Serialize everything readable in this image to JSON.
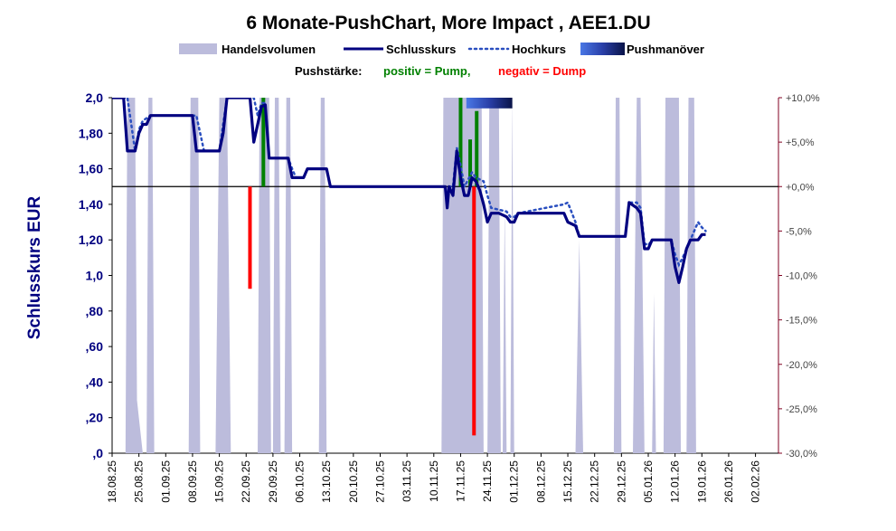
{
  "chart_data": {
    "type": "line",
    "title": "6 Monate-PushChart, More Impact , AEE1.DU",
    "legend": [
      {
        "name": "Handelsvolumen",
        "kind": "area",
        "color": "#bcbcdc"
      },
      {
        "name": "Schlusskurs",
        "kind": "line",
        "color": "#000080"
      },
      {
        "name": "Hochkurs",
        "kind": "dotted",
        "color": "#2a4fc0"
      },
      {
        "name": "Pushmanöver",
        "kind": "gradient",
        "color": "#1a2a80"
      }
    ],
    "pushstaerke": {
      "label": "Pushstärke:",
      "positive": "positiv = Pump,",
      "negative": "negativ = Dump",
      "positive_color": "#008000",
      "negative_color": "#ff0000"
    },
    "ylabel": "Schlusskurs EUR",
    "ylim": [
      0,
      2.0
    ],
    "y_ticks": [
      ",0",
      ",20",
      ",40",
      ",60",
      ",80",
      "1,0",
      "1,20",
      "1,40",
      "1,60",
      "1,80",
      "2,0"
    ],
    "y2lim": [
      -30,
      10
    ],
    "y2_ticks": [
      "-30,0%",
      "-25,0%",
      "-20,0%",
      "-15,0%",
      "-10,0%",
      "-5,0%",
      "+0,0%",
      "+5,0%",
      "+10,0%"
    ],
    "x_ticks": [
      "18.08.25",
      "25.08.25",
      "01.09.25",
      "08.09.25",
      "15.09.25",
      "22.09.25",
      "29.09.25",
      "06.10.25",
      "13.10.25",
      "20.10.25",
      "27.10.25",
      "03.11.25",
      "10.11.25",
      "17.11.25",
      "24.11.25",
      "01.12.25",
      "08.12.25",
      "15.12.25",
      "22.12.25",
      "29.12.25",
      "05.01.26",
      "12.01.26",
      "19.01.26",
      "26.01.26",
      "02.02.26"
    ],
    "x_range_days": [
      0,
      184
    ],
    "close_series": [
      [
        0,
        2.0
      ],
      [
        3,
        2.0
      ],
      [
        4,
        1.7
      ],
      [
        6,
        1.7
      ],
      [
        7,
        1.8
      ],
      [
        8,
        1.85
      ],
      [
        9,
        1.85
      ],
      [
        10,
        1.9
      ],
      [
        21,
        1.9
      ],
      [
        22,
        1.7
      ],
      [
        28,
        1.7
      ],
      [
        29,
        1.8
      ],
      [
        30,
        2.0
      ],
      [
        36,
        2.0
      ],
      [
        37,
        1.75
      ],
      [
        38,
        1.85
      ],
      [
        39,
        1.95
      ],
      [
        40,
        1.96
      ],
      [
        41,
        1.66
      ],
      [
        46,
        1.66
      ],
      [
        47,
        1.55
      ],
      [
        50,
        1.55
      ],
      [
        51,
        1.6
      ],
      [
        56,
        1.6
      ],
      [
        57,
        1.5
      ],
      [
        87,
        1.5
      ],
      [
        87.5,
        1.38
      ],
      [
        88,
        1.5
      ],
      [
        89,
        1.45
      ],
      [
        90,
        1.7
      ],
      [
        91,
        1.55
      ],
      [
        92,
        1.45
      ],
      [
        93,
        1.45
      ],
      [
        94,
        1.55
      ],
      [
        95,
        1.53
      ],
      [
        96,
        1.48
      ],
      [
        97,
        1.4
      ],
      [
        98,
        1.3
      ],
      [
        99,
        1.35
      ],
      [
        101,
        1.35
      ],
      [
        103,
        1.33
      ],
      [
        104,
        1.3
      ],
      [
        105,
        1.3
      ],
      [
        106,
        1.35
      ],
      [
        118,
        1.35
      ],
      [
        119,
        1.3
      ],
      [
        121,
        1.28
      ],
      [
        122,
        1.22
      ],
      [
        134,
        1.22
      ],
      [
        135,
        1.41
      ],
      [
        137,
        1.38
      ],
      [
        138,
        1.35
      ],
      [
        139,
        1.15
      ],
      [
        140,
        1.15
      ],
      [
        141,
        1.2
      ],
      [
        146,
        1.2
      ],
      [
        147,
        1.05
      ],
      [
        148,
        0.96
      ],
      [
        149,
        1.05
      ],
      [
        150,
        1.15
      ],
      [
        151,
        1.2
      ],
      [
        153,
        1.2
      ],
      [
        154,
        1.23
      ],
      [
        155,
        1.23
      ]
    ],
    "high_series": [
      [
        0,
        2.0
      ],
      [
        4,
        2.0
      ],
      [
        5,
        1.85
      ],
      [
        6,
        1.7
      ],
      [
        7,
        1.82
      ],
      [
        8,
        1.87
      ],
      [
        10,
        1.9
      ],
      [
        22,
        1.9
      ],
      [
        23,
        1.8
      ],
      [
        24,
        1.7
      ],
      [
        28,
        1.7
      ],
      [
        29,
        1.85
      ],
      [
        30,
        2.0
      ],
      [
        37,
        2.0
      ],
      [
        38,
        1.9
      ],
      [
        39,
        1.97
      ],
      [
        40,
        1.97
      ],
      [
        41,
        1.66
      ],
      [
        46,
        1.66
      ],
      [
        47,
        1.6
      ],
      [
        48,
        1.55
      ],
      [
        50,
        1.55
      ],
      [
        51,
        1.6
      ],
      [
        56,
        1.6
      ],
      [
        57,
        1.5
      ],
      [
        88,
        1.5
      ],
      [
        89,
        1.5
      ],
      [
        90,
        1.72
      ],
      [
        91,
        1.62
      ],
      [
        92,
        1.5
      ],
      [
        94,
        1.58
      ],
      [
        95,
        1.55
      ],
      [
        96,
        1.54
      ],
      [
        97,
        1.53
      ],
      [
        98,
        1.45
      ],
      [
        99,
        1.38
      ],
      [
        103,
        1.36
      ],
      [
        104,
        1.33
      ],
      [
        105,
        1.33
      ],
      [
        106,
        1.35
      ],
      [
        118,
        1.4
      ],
      [
        119,
        1.41
      ],
      [
        121,
        1.3
      ],
      [
        122,
        1.22
      ],
      [
        134,
        1.22
      ],
      [
        135,
        1.41
      ],
      [
        137,
        1.41
      ],
      [
        138,
        1.38
      ],
      [
        139,
        1.18
      ],
      [
        140,
        1.17
      ],
      [
        141,
        1.2
      ],
      [
        146,
        1.2
      ],
      [
        147,
        1.12
      ],
      [
        148,
        1.06
      ],
      [
        149,
        1.1
      ],
      [
        150,
        1.15
      ],
      [
        151,
        1.2
      ],
      [
        153,
        1.3
      ],
      [
        154,
        1.27
      ],
      [
        155,
        1.25
      ]
    ],
    "volume_series": [
      [
        0,
        0
      ],
      [
        3.5,
        0
      ],
      [
        4,
        2.0
      ],
      [
        6,
        2.0
      ],
      [
        6.5,
        0.3
      ],
      [
        7,
        0.2
      ],
      [
        8,
        0
      ],
      [
        9,
        0
      ],
      [
        9.5,
        2.0
      ],
      [
        10.5,
        2.0
      ],
      [
        11,
        0
      ],
      [
        20,
        0
      ],
      [
        20.5,
        2.0
      ],
      [
        22.5,
        2.0
      ],
      [
        23,
        0
      ],
      [
        27,
        0
      ],
      [
        28,
        2.0
      ],
      [
        30,
        2.0
      ],
      [
        31,
        0
      ],
      [
        38,
        0
      ],
      [
        38.5,
        2.0
      ],
      [
        41,
        2.0
      ],
      [
        41.5,
        0
      ],
      [
        42,
        0
      ],
      [
        42.5,
        2.0
      ],
      [
        43.5,
        2.0
      ],
      [
        44,
        0
      ],
      [
        45,
        0
      ],
      [
        45.5,
        2.0
      ],
      [
        46.5,
        2.0
      ],
      [
        47,
        0
      ],
      [
        54,
        0
      ],
      [
        54.5,
        2.0
      ],
      [
        55.5,
        2.0
      ],
      [
        56,
        0
      ],
      [
        86,
        0
      ],
      [
        86.5,
        2.0
      ],
      [
        96.5,
        2.0
      ],
      [
        97,
        0
      ],
      [
        98,
        0
      ],
      [
        98.5,
        2.0
      ],
      [
        101,
        2.0
      ],
      [
        101.5,
        0
      ],
      [
        102,
        0
      ],
      [
        102.5,
        1.4
      ],
      [
        103,
        0
      ],
      [
        104,
        0
      ],
      [
        104.5,
        2.0
      ],
      [
        105,
        0
      ],
      [
        121,
        0
      ],
      [
        122,
        1.2
      ],
      [
        123,
        0
      ],
      [
        131,
        0
      ],
      [
        131.5,
        2.0
      ],
      [
        132.5,
        2.0
      ],
      [
        133,
        0
      ],
      [
        136,
        0
      ],
      [
        137,
        2.0
      ],
      [
        138,
        2.0
      ],
      [
        139,
        0
      ],
      [
        141,
        0
      ],
      [
        141.5,
        0.9
      ],
      [
        142,
        0
      ],
      [
        144,
        0
      ],
      [
        144.5,
        2.0
      ],
      [
        148,
        2.0
      ],
      [
        148.5,
        0
      ],
      [
        150,
        0
      ],
      [
        150.5,
        2.0
      ],
      [
        152,
        2.0
      ],
      [
        152.5,
        0
      ],
      [
        155,
        0
      ]
    ],
    "push_bars": [
      {
        "day": 36,
        "pct": -11.5,
        "color": "#ff0000"
      },
      {
        "day": 39.5,
        "pct": 10.0,
        "color": "#008000"
      },
      {
        "day": 91,
        "pct": 10.0,
        "color": "#008000"
      },
      {
        "day": 93.5,
        "pct": 5.3,
        "color": "#008000"
      },
      {
        "day": 94.5,
        "pct": -28.0,
        "color": "#ff0000"
      },
      {
        "day": 95.2,
        "pct": 8.5,
        "color": "#008000"
      }
    ],
    "push_maneuver": {
      "start_day": 92.5,
      "end_day": 104.5,
      "level_pct": 9.0
    },
    "reference_line_pct": 0,
    "grid": false
  }
}
